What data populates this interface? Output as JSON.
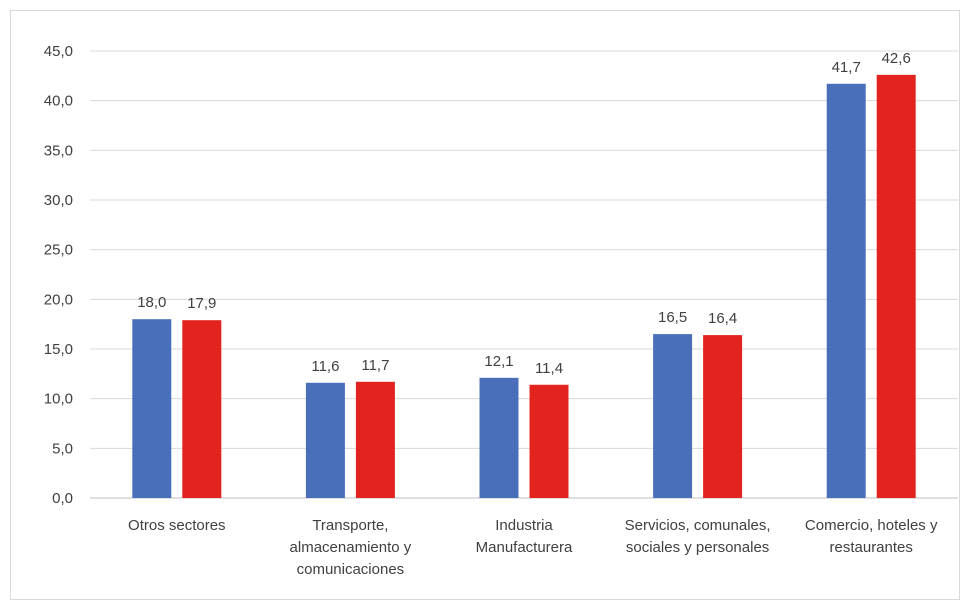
{
  "chart_data": {
    "type": "bar",
    "categories": [
      [
        "Otros sectores"
      ],
      [
        "Transporte,",
        "almacenamiento y",
        "comunicaciones"
      ],
      [
        "Industria",
        "Manufacturera"
      ],
      [
        "Servicios, comunales,",
        "sociales y personales"
      ],
      [
        "Comercio, hoteles y",
        "restaurantes"
      ]
    ],
    "series": [
      {
        "color": "#4a6fba",
        "values": [
          18.0,
          11.6,
          12.1,
          16.5,
          41.7
        ],
        "labels": [
          "18,0",
          "11,6",
          "12,1",
          "16,5",
          "41,7"
        ]
      },
      {
        "color": "#e3241e",
        "values": [
          17.9,
          11.7,
          11.4,
          16.4,
          42.6
        ],
        "labels": [
          "17,9",
          "11,7",
          "11,4",
          "16,4",
          "42,6"
        ]
      }
    ],
    "yticks": [
      "0,0",
      "5,0",
      "10,0",
      "15,0",
      "20,0",
      "25,0",
      "30,0",
      "35,0",
      "40,0",
      "45,0"
    ],
    "ylim": [
      0,
      45
    ],
    "grid": true,
    "title": "",
    "xlabel": "",
    "ylabel": ""
  }
}
